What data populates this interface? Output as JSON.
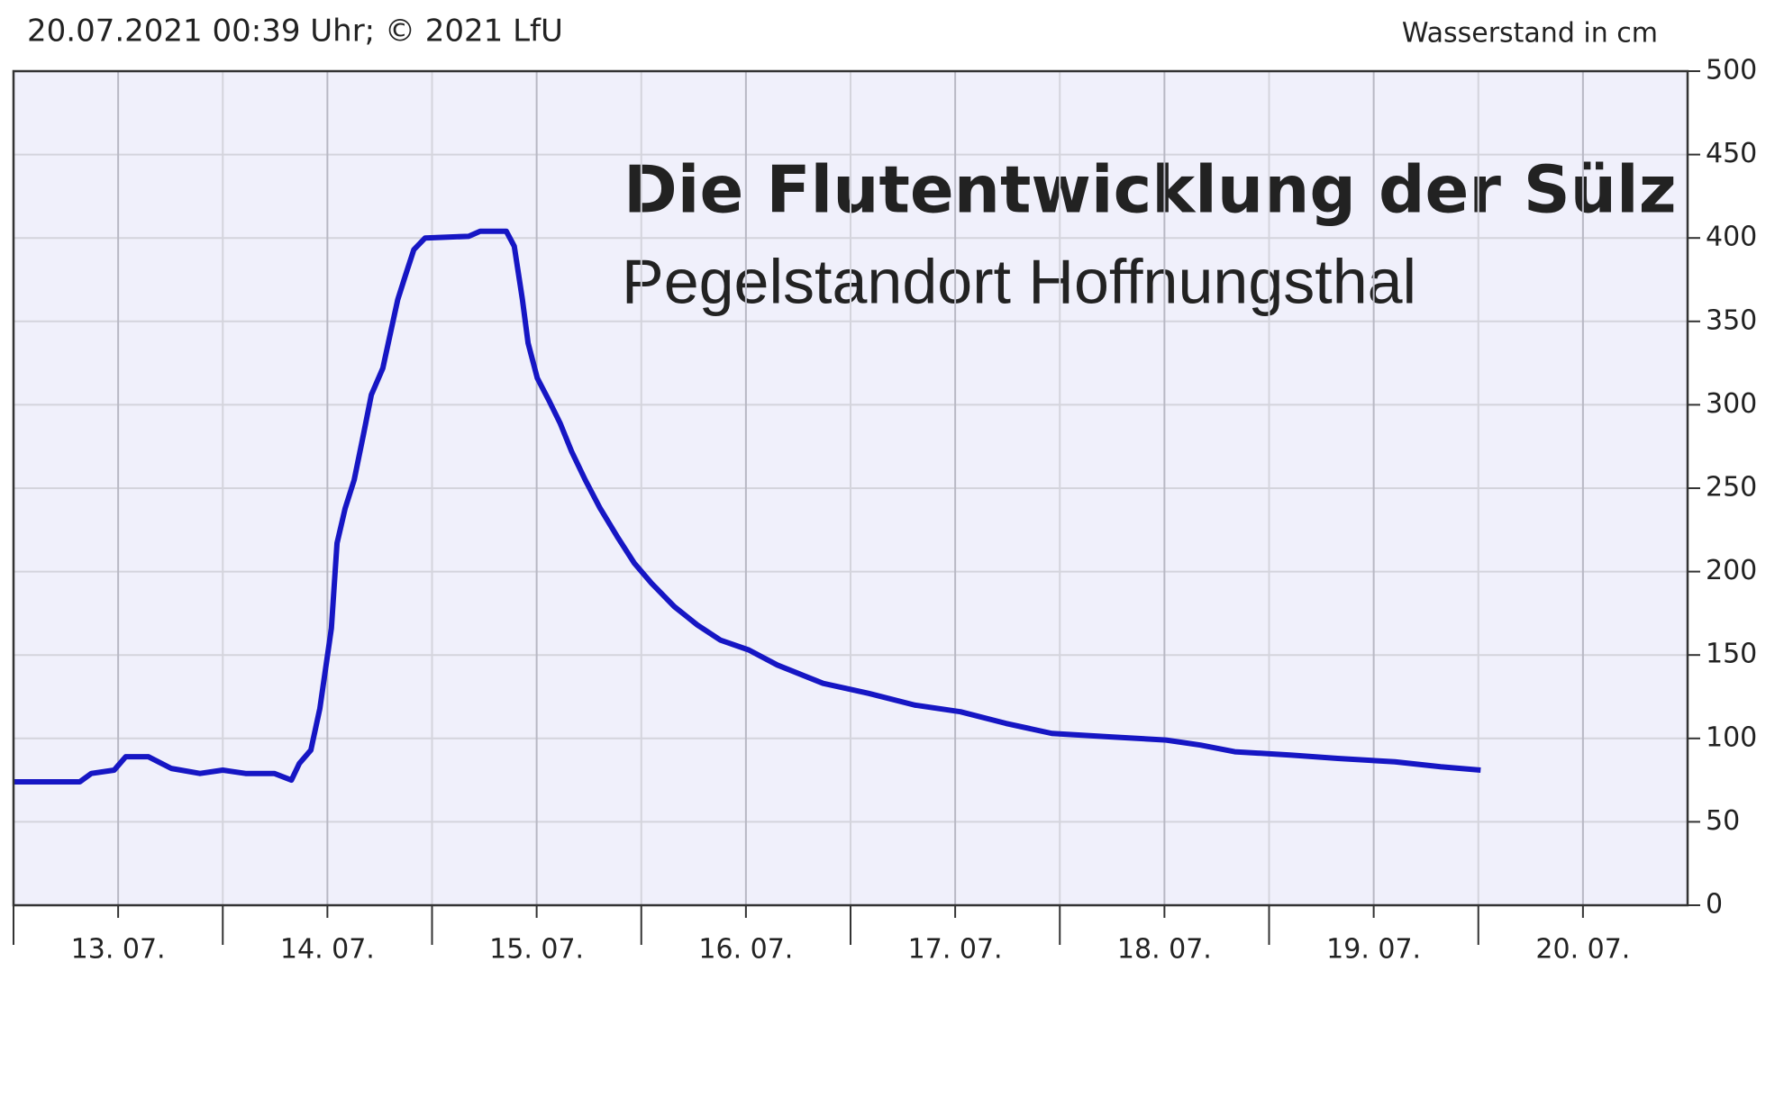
{
  "chart_data": {
    "type": "line",
    "header": "20.07.2021 00:39 Uhr; © 2021 LfU",
    "ylabel": "Wasserstand in cm",
    "title": "Die Flutentwicklung der Sülz",
    "subtitle": "Pegelstandort Hoffnungsthal",
    "xlim": [
      13,
      21
    ],
    "xticks": [
      {
        "value": 13.5,
        "label": "13. 07."
      },
      {
        "value": 14.5,
        "label": "14. 07."
      },
      {
        "value": 15.5,
        "label": "15. 07."
      },
      {
        "value": 16.5,
        "label": "16. 07."
      },
      {
        "value": 17.5,
        "label": "17. 07."
      },
      {
        "value": 18.5,
        "label": "18. 07."
      },
      {
        "value": 19.5,
        "label": "19. 07."
      },
      {
        "value": 20.5,
        "label": "20. 07."
      }
    ],
    "ylim": [
      0,
      500
    ],
    "yticks": [
      0,
      50,
      100,
      150,
      200,
      250,
      300,
      350,
      400,
      450,
      500
    ],
    "grid": true,
    "series": [
      {
        "color": "#1616c4",
        "x": [
          13.0,
          13.317,
          13.372,
          13.481,
          13.536,
          13.645,
          13.754,
          13.891,
          14.0,
          14.109,
          14.246,
          14.328,
          14.366,
          14.421,
          14.464,
          14.519,
          14.546,
          14.585,
          14.628,
          14.672,
          14.71,
          14.765,
          14.803,
          14.836,
          14.874,
          14.913,
          14.967,
          15.175,
          15.23,
          15.355,
          15.393,
          15.432,
          15.459,
          15.503,
          15.557,
          15.612,
          15.667,
          15.732,
          15.803,
          15.885,
          15.967,
          16.049,
          16.158,
          16.268,
          16.377,
          16.514,
          16.65,
          16.869,
          17.087,
          17.306,
          17.525,
          17.743,
          17.962,
          18.235,
          18.508,
          18.672,
          18.836,
          19.109,
          19.328,
          19.601,
          19.82,
          20.011
        ],
        "values": [
          74,
          74,
          79,
          81,
          89,
          89,
          82,
          79,
          81,
          79,
          79,
          75,
          85,
          93,
          118,
          166,
          217,
          238,
          255,
          282,
          306,
          322,
          344,
          363,
          378,
          393,
          400,
          401,
          404,
          404,
          395,
          363,
          337,
          316,
          303,
          289,
          272,
          255,
          238,
          221,
          205,
          193,
          179,
          168,
          159,
          153,
          144,
          133,
          127,
          120,
          116,
          109,
          103,
          101,
          99,
          96,
          92,
          90,
          88,
          86,
          83,
          81
        ]
      }
    ]
  }
}
